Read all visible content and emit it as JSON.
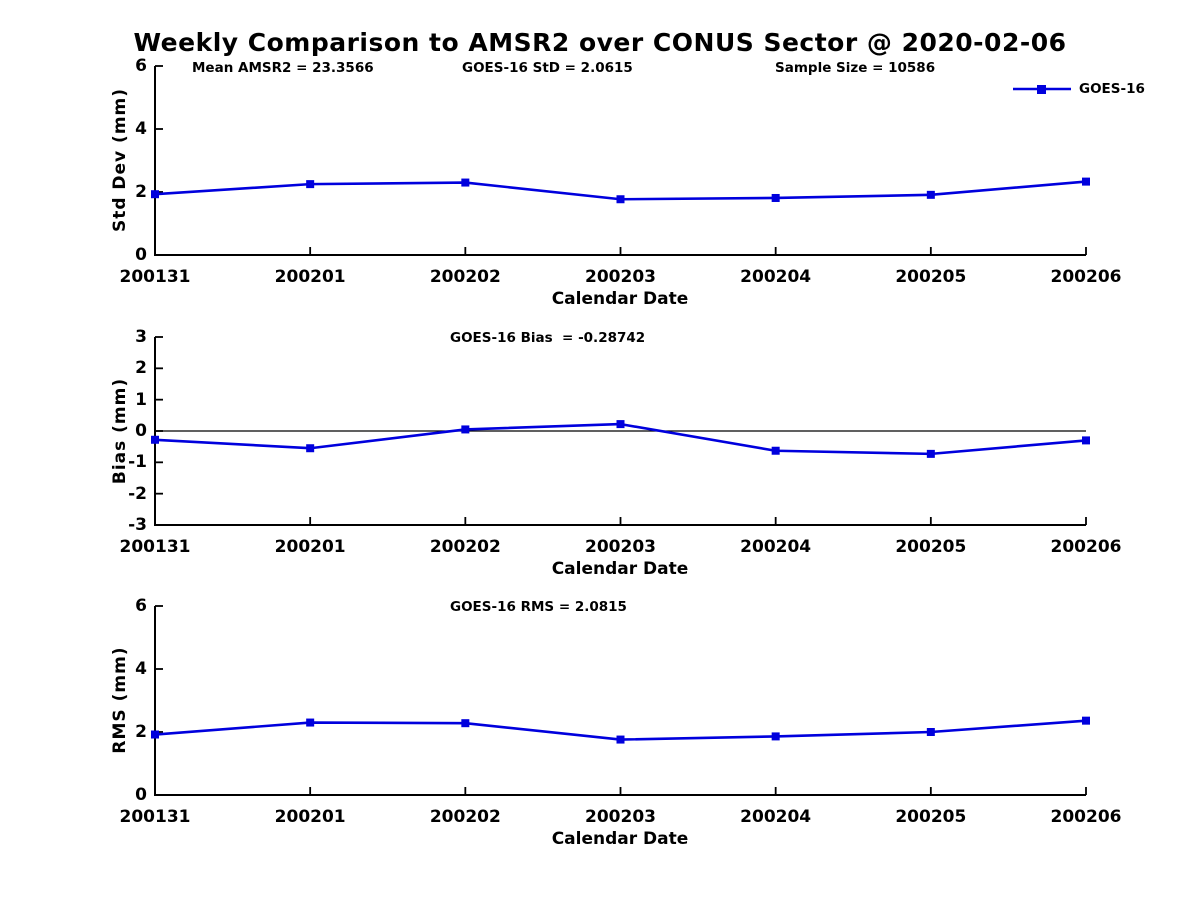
{
  "title": "Weekly Comparison to AMSR2 over CONUS Sector @ 2020-02-06",
  "colors": {
    "line": "#0000dd",
    "axis": "#000000",
    "text": "#000000",
    "background": "#ffffff",
    "zero_line": "#000000"
  },
  "legend": {
    "label": "GOES-16"
  },
  "chart_data": [
    {
      "type": "line",
      "title": "",
      "categories": [
        "200131",
        "200201",
        "200202",
        "200203",
        "200204",
        "200205",
        "200206"
      ],
      "series": [
        {
          "name": "GOES-16",
          "values": [
            1.93,
            2.25,
            2.3,
            1.77,
            1.81,
            1.91,
            2.33
          ]
        }
      ],
      "xlabel": "Calendar Date",
      "ylabel": "Std Dev (mm)",
      "ylim": [
        0,
        6
      ],
      "yticks": [
        0,
        2,
        4,
        6
      ],
      "annotations": [
        "Mean AMSR2 = 23.3566",
        "GOES-16 StD = 2.0615",
        "Sample Size = 10586"
      ],
      "legend_entries": [
        "GOES-16"
      ],
      "legend_position": "top-right",
      "grid": false,
      "marker": "square",
      "zero_line": false
    },
    {
      "type": "line",
      "title": "",
      "categories": [
        "200131",
        "200201",
        "200202",
        "200203",
        "200204",
        "200205",
        "200206"
      ],
      "series": [
        {
          "name": "GOES-16",
          "values": [
            -0.28,
            -0.55,
            0.05,
            0.22,
            -0.63,
            -0.73,
            -0.3
          ]
        }
      ],
      "xlabel": "Calendar Date",
      "ylabel": "Bias (mm)",
      "ylim": [
        -3,
        3
      ],
      "yticks": [
        -3,
        -2,
        -1,
        0,
        1,
        2,
        3
      ],
      "annotations": [
        "GOES-16 Bias  = -0.28742"
      ],
      "grid": false,
      "marker": "square",
      "zero_line": true
    },
    {
      "type": "line",
      "title": "",
      "categories": [
        "200131",
        "200201",
        "200202",
        "200203",
        "200204",
        "200205",
        "200206"
      ],
      "series": [
        {
          "name": "GOES-16",
          "values": [
            1.92,
            2.3,
            2.28,
            1.76,
            1.86,
            2.0,
            2.36
          ]
        }
      ],
      "xlabel": "Calendar Date",
      "ylabel": "RMS (mm)",
      "ylim": [
        0,
        6
      ],
      "yticks": [
        0,
        2,
        4,
        6
      ],
      "annotations": [
        "GOES-16 RMS = 2.0815"
      ],
      "grid": false,
      "marker": "square",
      "zero_line": false
    }
  ]
}
